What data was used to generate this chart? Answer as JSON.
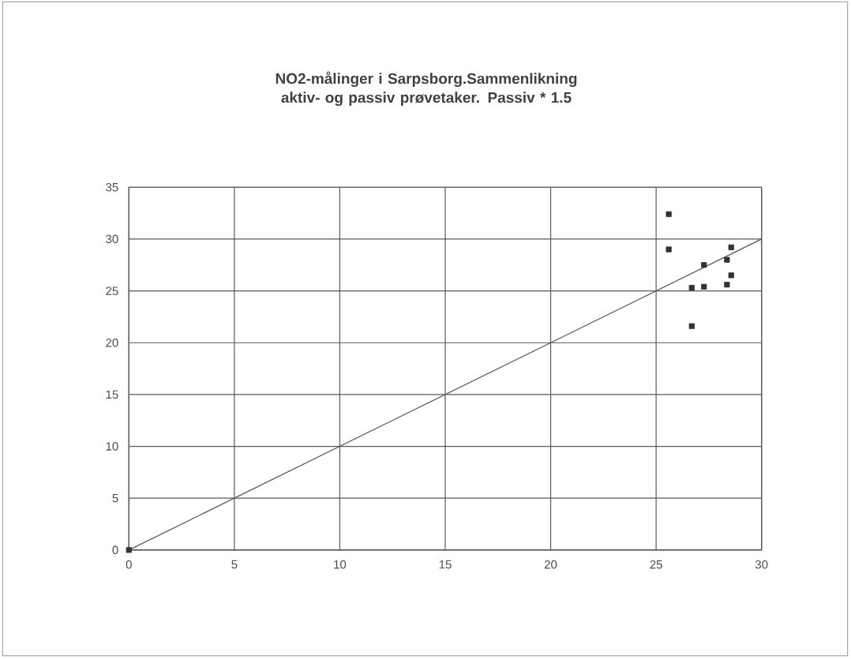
{
  "chart_data": {
    "type": "scatter",
    "title": "NO2-målinger i Sarpsborg.Sammenlikning aktiv- og passiv prøvetaker. Passiv * 1.5",
    "series": [
      {
        "color": "#333333",
        "marker": "square",
        "x": [
          0,
          25.6,
          25.6,
          28.56,
          28.36,
          27.27,
          28.56,
          28.36,
          27.27,
          26.69,
          26.69
        ],
        "values": [
          0,
          32.4,
          29.0,
          29.2,
          28.0,
          27.5,
          26.5,
          25.6,
          25.4,
          25.3,
          21.6
        ]
      },
      {
        "type": "line",
        "color": "#555555",
        "marker": "none",
        "x": [
          0,
          30
        ],
        "values": [
          0,
          30
        ]
      }
    ],
    "xlim": [
      0,
      30
    ],
    "ylim": [
      0,
      35
    ],
    "xticks": [
      0,
      5,
      10,
      15,
      20,
      25,
      30
    ],
    "yticks": [
      0,
      5,
      10,
      15,
      20,
      25,
      30,
      35
    ],
    "grid": true
  }
}
